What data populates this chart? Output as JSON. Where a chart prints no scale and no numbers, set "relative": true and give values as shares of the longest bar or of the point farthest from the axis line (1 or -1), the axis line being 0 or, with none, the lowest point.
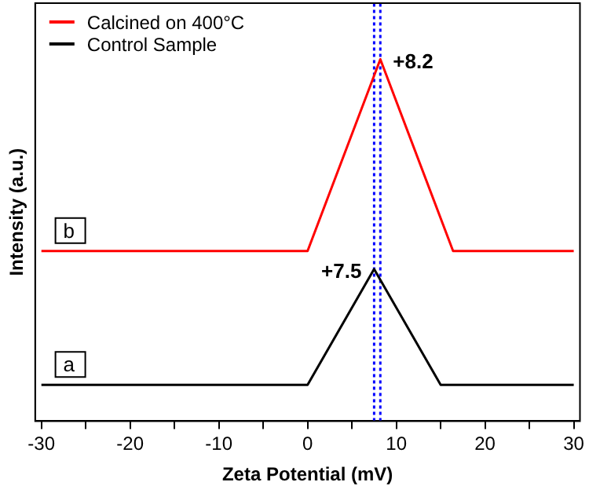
{
  "chart_data": {
    "type": "line",
    "xlabel": "Zeta Potential (mV)",
    "ylabel": "Intensity (a.u.)",
    "relative": true,
    "xlim": [
      -30.7,
      30.7
    ],
    "xticks": [
      -30,
      {
        "value": -25,
        "label": null
      },
      -20,
      {
        "value": -15,
        "label": null
      },
      -10,
      {
        "value": -5,
        "label": null
      },
      0,
      {
        "value": 5,
        "label": null
      },
      10,
      {
        "value": 15,
        "label": null
      },
      20,
      {
        "value": 25,
        "label": null
      },
      30
    ],
    "series": [
      {
        "name": "Calcined on 400°C",
        "color": "#ff0000",
        "x": [
          -30,
          0,
          8.2,
          16.4,
          30
        ],
        "values": [
          0.47,
          0.47,
          1,
          0.47,
          0.47
        ]
      },
      {
        "name": "Control Sample",
        "color": "#000000",
        "x": [
          -30,
          0,
          7.5,
          15,
          30
        ],
        "values": [
          0.1,
          0.1,
          0.42,
          0.1,
          0.1
        ]
      }
    ],
    "ref_lines": [
      {
        "axis": "x",
        "value": 7.5,
        "color": "#0000ff",
        "line_style": "dotted"
      },
      {
        "axis": "x",
        "value": 8.2,
        "color": "#0000ff",
        "line_style": "dotted"
      }
    ],
    "annotations": [
      {
        "text": "+8.2",
        "x": 8.2,
        "y": 1
      },
      {
        "text": "+7.5",
        "x": 7.5,
        "y": 0.42
      },
      {
        "text": "b",
        "x": -27,
        "y": 0.47
      },
      {
        "text": "a",
        "x": -27,
        "y": 0.1
      }
    ],
    "legend": "top left",
    "grid": false,
    "marker": "none",
    "line_style": "solid"
  }
}
